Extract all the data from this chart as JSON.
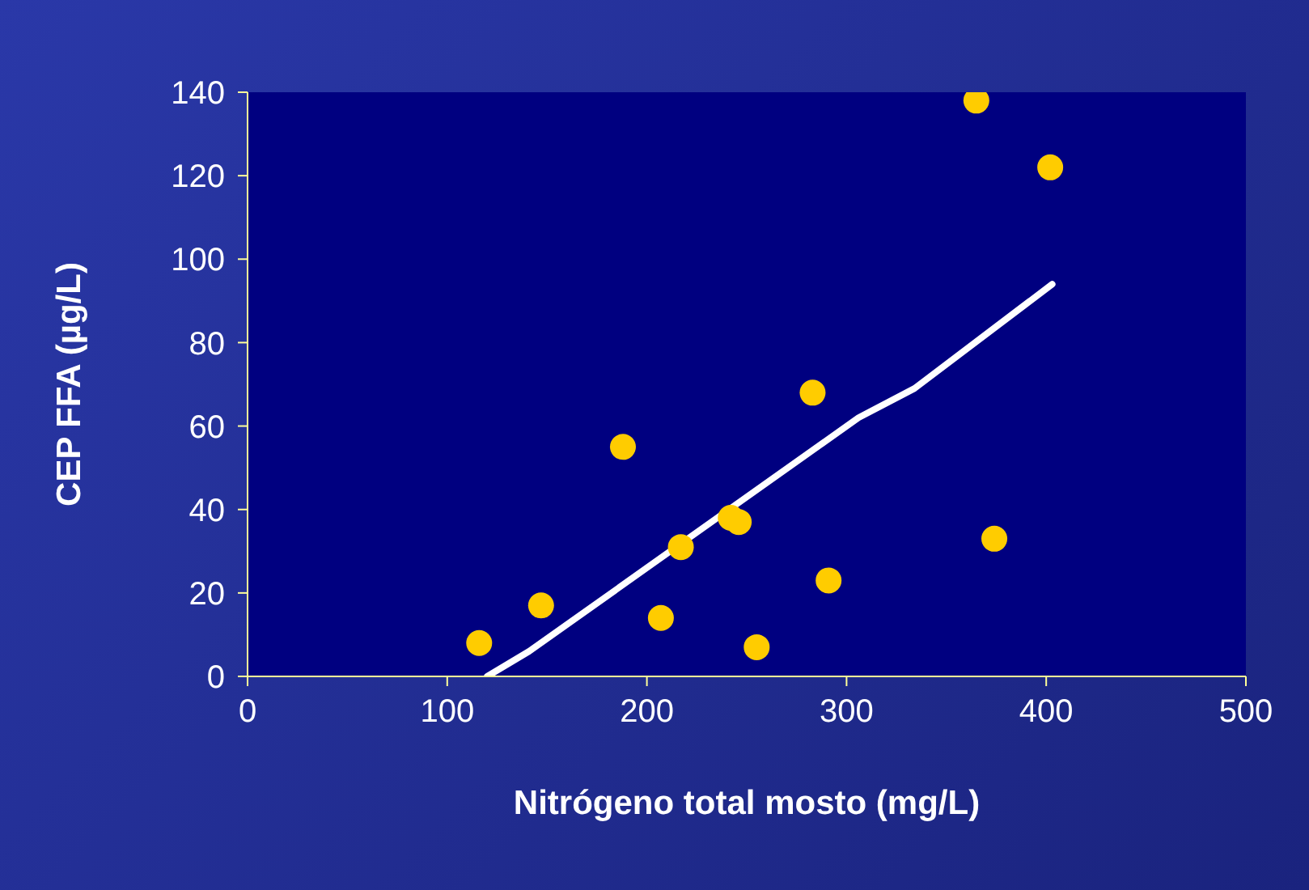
{
  "chart_data": {
    "type": "scatter",
    "xlabel": "Nitrógeno total mosto (mg/L)",
    "ylabel": "CEP FFA (µg/L)",
    "xlim": [
      0,
      500
    ],
    "xticks": [
      0,
      100,
      200,
      300,
      400,
      500
    ],
    "ylim": [
      0,
      140
    ],
    "yticks": [
      0,
      20,
      40,
      60,
      80,
      100,
      120,
      140
    ],
    "grid": false,
    "marker": "circle",
    "series": [
      {
        "color": "#ffcc00",
        "x": [
          116,
          147,
          188,
          207,
          217,
          242,
          246,
          255,
          283,
          291,
          365,
          374,
          402
        ],
        "values": [
          8,
          17,
          55,
          14,
          31,
          38,
          37,
          7,
          68,
          23,
          138,
          33,
          122
        ]
      },
      {
        "type": "line",
        "color": "#ffffff",
        "marker": "none",
        "line_style": "solid",
        "x": [
          120,
          141,
          306,
          334,
          403
        ],
        "values": [
          0,
          6,
          62,
          69,
          94
        ]
      }
    ]
  }
}
